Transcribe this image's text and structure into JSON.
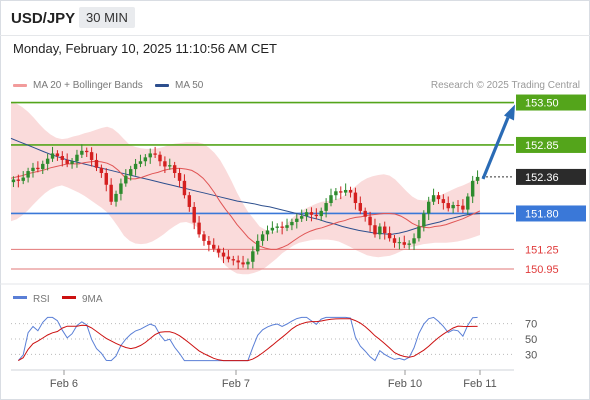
{
  "header": {
    "symbol": "USD/JPY",
    "timeframe": "30 MIN",
    "datetime": "Monday, February 10, 2025 11:10:56 AM CET"
  },
  "legend": {
    "ma20": "MA 20 + Bollinger Bands",
    "ma50": "MA 50",
    "credit": "Research © 2025 Trading Central"
  },
  "colors": {
    "bollinger": "#f9d5d5",
    "ma20": "#e05555",
    "ma50": "#2d4f8e",
    "up": "#2e8b2e",
    "down": "#d42020",
    "target": "#54a51b",
    "support": "#3a78d8",
    "arrow": "#2a6bb5",
    "rsi": "#5a7fd6",
    "rsi_ma": "#cc1111"
  },
  "chart_data": {
    "type": "candlestick",
    "y_axis": {
      "min": 150.75,
      "max": 153.6
    },
    "x_ticks": [
      "Feb 6",
      "Feb 7",
      "Feb 10",
      "Feb 11"
    ],
    "levels": [
      {
        "value": 153.5,
        "label": "153.50",
        "kind": "target"
      },
      {
        "value": 152.85,
        "label": "152.85",
        "kind": "target"
      },
      {
        "value": 152.36,
        "label": "152.36",
        "kind": "current"
      },
      {
        "value": 151.8,
        "label": "151.80",
        "kind": "pivot"
      },
      {
        "value": 151.25,
        "label": "151.25",
        "kind": "support"
      },
      {
        "value": 150.95,
        "label": "150.95",
        "kind": "support"
      }
    ],
    "close": [
      152.32,
      152.3,
      152.35,
      152.45,
      152.5,
      152.48,
      152.56,
      152.64,
      152.72,
      152.68,
      152.62,
      152.56,
      152.6,
      152.7,
      152.76,
      152.74,
      152.62,
      152.5,
      152.42,
      152.24,
      151.98,
      152.1,
      152.26,
      152.38,
      152.48,
      152.56,
      152.6,
      152.66,
      152.72,
      152.7,
      152.6,
      152.52,
      152.54,
      152.42,
      152.3,
      152.08,
      151.9,
      151.66,
      151.48,
      151.38,
      151.32,
      151.26,
      151.2,
      151.14,
      151.1,
      151.08,
      151.05,
      151.02,
      151.06,
      151.22,
      151.38,
      151.48,
      151.54,
      151.58,
      151.6,
      151.58,
      151.62,
      151.67,
      151.72,
      151.76,
      151.82,
      151.78,
      151.76,
      151.84,
      151.96,
      152.08,
      152.14,
      152.12,
      152.16,
      152.12,
      151.96,
      151.84,
      151.75,
      151.62,
      151.48,
      151.6,
      151.5,
      151.42,
      151.35,
      151.36,
      151.32,
      151.34,
      151.42,
      151.6,
      151.8,
      151.98,
      152.08,
      152.02,
      151.96,
      151.88,
      151.93,
      151.92,
      151.86,
      152.06,
      152.3,
      152.36
    ],
    "ma20": [
      152.34,
      152.36,
      152.38,
      152.41,
      152.43,
      152.45,
      152.47,
      152.5,
      152.52,
      152.54,
      152.56,
      152.56,
      152.56,
      152.58,
      152.59,
      152.6,
      152.59,
      152.57,
      152.53,
      152.46,
      152.37,
      152.33,
      152.33,
      152.35,
      152.38,
      152.41,
      152.43,
      152.46,
      152.48,
      152.49,
      152.49,
      152.48,
      152.46,
      152.41,
      152.34,
      152.24,
      152.12,
      151.98,
      151.86,
      151.75,
      151.63,
      151.53,
      151.43,
      151.36,
      151.3,
      151.27,
      151.25,
      151.25,
      151.28,
      151.32,
      151.38,
      151.44,
      151.49,
      151.53,
      151.56,
      151.58,
      151.61,
      151.64,
      151.67,
      151.69,
      151.72,
      151.74,
      151.75,
      151.77,
      151.78,
      151.79,
      151.8,
      151.8,
      151.79,
      151.76,
      151.71,
      151.65,
      151.61,
      151.59,
      151.58,
      151.6,
      151.61,
      151.63,
      151.66,
      151.69,
      151.72,
      151.76,
      151.8,
      151.84
    ],
    "ma50": [
      152.95,
      152.9,
      152.85,
      152.8,
      152.75,
      152.7,
      152.66,
      152.62,
      152.59,
      152.56,
      152.53,
      152.5,
      152.47,
      152.44,
      152.41,
      152.38,
      152.35,
      152.32,
      152.29,
      152.26,
      152.23,
      152.2,
      152.17,
      152.14,
      152.11,
      152.08,
      152.05,
      152.02,
      151.99,
      151.97,
      151.95,
      151.92,
      151.9,
      151.87,
      151.84,
      151.81,
      151.78,
      151.74,
      151.71,
      151.67,
      151.64,
      151.6,
      151.57,
      151.54,
      151.52,
      151.5,
      151.49,
      151.48,
      151.5,
      151.53,
      151.57,
      151.61,
      151.64,
      151.67,
      151.71,
      151.74,
      151.77,
      151.79,
      151.8
    ],
    "bb_upper": [
      153.5,
      153.48,
      153.43,
      153.36,
      153.27,
      153.17,
      153.08,
      153.01,
      152.96,
      152.94,
      152.95,
      152.98,
      153.0,
      153.03,
      153.05,
      153.08,
      153.11,
      153.13,
      153.1,
      153.03,
      152.94,
      152.85,
      152.82,
      152.8,
      152.79,
      152.79,
      152.8,
      152.82,
      152.85,
      152.87,
      152.88,
      152.89,
      152.89,
      152.89,
      152.87,
      152.81,
      152.73,
      152.62,
      152.47,
      152.3,
      152.12,
      151.96,
      151.82,
      151.71,
      151.6,
      151.55,
      151.52,
      151.53,
      151.57,
      151.66,
      151.75,
      151.81,
      151.87,
      151.91,
      151.95,
      151.98,
      151.99,
      152.01,
      152.03,
      152.08,
      152.15,
      152.22,
      152.29,
      152.34,
      152.37,
      152.39,
      152.4,
      152.38,
      152.32,
      152.23,
      152.14,
      152.06,
      152.01,
      152.0,
      152.01,
      152.04,
      152.08,
      152.12,
      152.16,
      152.2,
      152.23,
      152.27,
      152.31,
      152.36
    ],
    "bb_lower": [
      151.68,
      151.71,
      151.77,
      151.85,
      151.94,
      152.03,
      152.11,
      152.17,
      152.21,
      152.23,
      152.2,
      152.16,
      152.12,
      152.07,
      152.01,
      151.95,
      151.89,
      151.82,
      151.71,
      151.59,
      151.46,
      151.38,
      151.34,
      151.33,
      151.34,
      151.37,
      151.42,
      151.48,
      151.55,
      151.61,
      151.66,
      151.67,
      151.64,
      151.59,
      151.5,
      151.38,
      151.24,
      151.11,
      151.0,
      150.93,
      150.88,
      150.87,
      150.87,
      150.89,
      150.92,
      150.97,
      151.04,
      151.11,
      151.19,
      151.25,
      151.31,
      151.35,
      151.37,
      151.39,
      151.4,
      151.4,
      151.4,
      151.39,
      151.37,
      151.33,
      151.29,
      151.24,
      151.2,
      151.16,
      151.14,
      151.13,
      151.14,
      151.15,
      151.18,
      151.22,
      151.26,
      151.29,
      151.31,
      151.33,
      151.34,
      151.35,
      151.35,
      151.35,
      151.36,
      151.37,
      151.39,
      151.41,
      151.44,
      151.47
    ],
    "rsi": {
      "label": "RSI",
      "ma_label": "9MA",
      "ticks": [
        70,
        50,
        30
      ],
      "range": [
        15,
        85
      ]
    }
  }
}
